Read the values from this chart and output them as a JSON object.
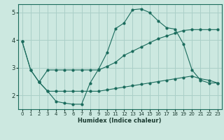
{
  "xlabel": "Humidex (Indice chaleur)",
  "xlim": [
    -0.5,
    23.5
  ],
  "ylim": [
    1.5,
    5.3
  ],
  "yticks": [
    2,
    3,
    4,
    5
  ],
  "xticks": [
    0,
    1,
    2,
    3,
    4,
    5,
    6,
    7,
    8,
    9,
    10,
    11,
    12,
    13,
    14,
    15,
    16,
    17,
    18,
    19,
    20,
    21,
    22,
    23
  ],
  "bg_color": "#cce8e0",
  "grid_color": "#aacfc8",
  "line_color": "#1a6b5c",
  "line1_x": [
    0,
    1,
    2,
    3,
    4,
    5,
    6,
    7,
    8,
    9,
    10,
    11,
    12,
    13,
    14,
    15,
    16,
    17,
    18,
    19,
    20,
    21,
    22,
    23
  ],
  "line1_y": [
    3.95,
    2.92,
    2.48,
    2.92,
    2.92,
    2.92,
    2.92,
    2.92,
    2.92,
    2.92,
    3.05,
    3.2,
    3.45,
    3.6,
    3.75,
    3.9,
    4.05,
    4.15,
    4.25,
    4.35,
    4.38,
    4.38,
    4.38,
    4.38
  ],
  "line2_x": [
    0,
    1,
    2,
    3,
    4,
    5,
    6,
    7,
    8,
    9,
    10,
    11,
    12,
    13,
    14,
    15,
    16,
    17,
    18,
    19,
    20,
    21,
    22,
    23
  ],
  "line2_y": [
    3.95,
    2.92,
    2.48,
    2.15,
    1.78,
    1.72,
    1.68,
    1.68,
    2.45,
    2.95,
    3.55,
    4.42,
    4.62,
    5.1,
    5.13,
    5.0,
    4.7,
    4.45,
    4.4,
    3.85,
    2.92,
    2.55,
    2.45,
    2.45
  ],
  "line3_x": [
    2,
    3,
    4,
    5,
    6,
    7,
    8,
    9,
    10,
    11,
    12,
    13,
    14,
    15,
    16,
    17,
    18,
    19,
    20,
    21,
    22,
    23
  ],
  "line3_y": [
    2.48,
    2.15,
    2.15,
    2.15,
    2.15,
    2.15,
    2.15,
    2.15,
    2.2,
    2.25,
    2.3,
    2.35,
    2.4,
    2.45,
    2.5,
    2.55,
    2.6,
    2.65,
    2.7,
    2.6,
    2.55,
    2.45
  ]
}
